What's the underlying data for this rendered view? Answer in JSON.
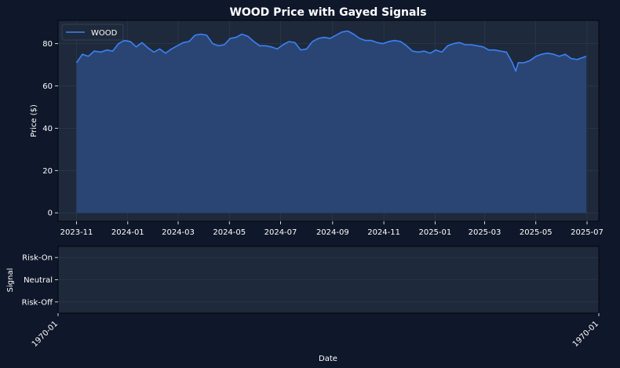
{
  "theme": {
    "figure_bg": "#0f172a",
    "axes_bg": "#1e293b",
    "line_color": "#3b82f6",
    "fill_color": "#2a4574",
    "grid_color": "#2f3c52",
    "text_color": "#ffffff"
  },
  "chart_data": [
    {
      "type": "area",
      "title": "WOOD Price with Gayed Signals",
      "xlabel": "",
      "ylabel": "Price ($)",
      "grid": true,
      "legend_position": "top-left",
      "xlim": [
        "2023-10-10",
        "2025-07-15"
      ],
      "ylim": [
        -4,
        91
      ],
      "x_ticks": [
        "2023-11",
        "2024-01",
        "2024-03",
        "2024-05",
        "2024-07",
        "2024-09",
        "2024-11",
        "2025-01",
        "2025-03",
        "2025-05",
        "2025-07"
      ],
      "y_ticks": [
        0,
        20,
        40,
        60,
        80
      ],
      "series": [
        {
          "name": "WOOD",
          "x": [
            "2023-11-01",
            "2023-11-08",
            "2023-11-15",
            "2023-11-22",
            "2023-11-30",
            "2023-12-07",
            "2023-12-14",
            "2023-12-21",
            "2023-12-28",
            "2024-01-04",
            "2024-01-11",
            "2024-01-18",
            "2024-01-25",
            "2024-02-01",
            "2024-02-08",
            "2024-02-15",
            "2024-02-22",
            "2024-02-29",
            "2024-03-07",
            "2024-03-14",
            "2024-03-21",
            "2024-03-28",
            "2024-04-04",
            "2024-04-11",
            "2024-04-18",
            "2024-04-25",
            "2024-05-02",
            "2024-05-09",
            "2024-05-16",
            "2024-05-23",
            "2024-05-30",
            "2024-06-06",
            "2024-06-13",
            "2024-06-20",
            "2024-06-27",
            "2024-07-04",
            "2024-07-11",
            "2024-07-18",
            "2024-07-25",
            "2024-08-01",
            "2024-08-08",
            "2024-08-15",
            "2024-08-22",
            "2024-08-29",
            "2024-09-05",
            "2024-09-12",
            "2024-09-19",
            "2024-09-26",
            "2024-10-03",
            "2024-10-10",
            "2024-10-17",
            "2024-10-24",
            "2024-10-31",
            "2024-11-07",
            "2024-11-14",
            "2024-11-21",
            "2024-11-28",
            "2024-12-05",
            "2024-12-12",
            "2024-12-19",
            "2024-12-26",
            "2025-01-02",
            "2025-01-09",
            "2025-01-16",
            "2025-01-23",
            "2025-01-30",
            "2025-02-06",
            "2025-02-13",
            "2025-02-20",
            "2025-02-27",
            "2025-03-06",
            "2025-03-13",
            "2025-03-20",
            "2025-03-27",
            "2025-04-03",
            "2025-04-07",
            "2025-04-10",
            "2025-04-17",
            "2025-04-24",
            "2025-05-01",
            "2025-05-08",
            "2025-05-15",
            "2025-05-22",
            "2025-05-29",
            "2025-06-05",
            "2025-06-12",
            "2025-06-19",
            "2025-06-26",
            "2025-06-30"
          ],
          "values": [
            71,
            75,
            74,
            76.5,
            76,
            77,
            76.5,
            80,
            81.5,
            81,
            78.5,
            80.5,
            78,
            76,
            77.5,
            75.5,
            77.5,
            79,
            80.5,
            81,
            84,
            84.5,
            84,
            80,
            79,
            79.5,
            82.5,
            83,
            84.5,
            83.5,
            81,
            79,
            79,
            78.5,
            77.5,
            79.5,
            81,
            80.5,
            77,
            77.5,
            81,
            82.5,
            83,
            82.5,
            84,
            85.5,
            86,
            84.5,
            82.5,
            81.5,
            81.5,
            80.5,
            80,
            81,
            81.5,
            81,
            79,
            76.5,
            76,
            76.5,
            75.5,
            77,
            76,
            79,
            80,
            80.5,
            79.5,
            79.5,
            79,
            78.5,
            77,
            77,
            76.5,
            76,
            71,
            67,
            71,
            71,
            72,
            74,
            75,
            75.5,
            75,
            74,
            75,
            73,
            72.5,
            73.5,
            74
          ]
        }
      ]
    },
    {
      "type": "line",
      "title": "",
      "xlabel": "Date",
      "ylabel": "Signal",
      "grid": true,
      "xlim": [
        "1970-01-01",
        "1970-01-02"
      ],
      "x_ticks": [
        "1970-01",
        "1970-01"
      ],
      "y_ticks": [
        "Risk-On",
        "Neutral",
        "Risk-Off"
      ],
      "ylim": [
        -1.5,
        1.5
      ],
      "series": []
    }
  ]
}
